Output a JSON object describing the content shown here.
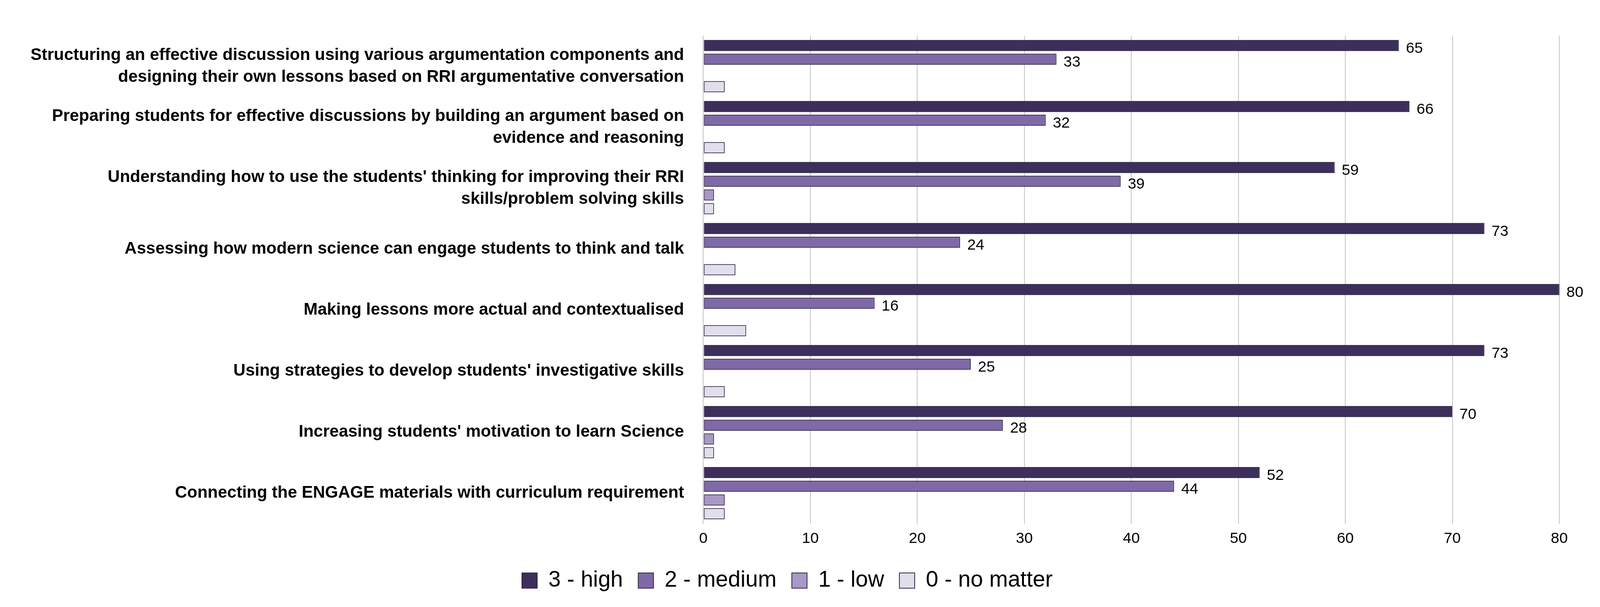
{
  "chart_data": {
    "type": "bar",
    "orientation": "horizontal",
    "categories": [
      "Structuring an effective discussion using various argumentation components and designing their own lessons based on RRI argumentative conversation",
      "Preparing students for effective discussions by building an argument based on evidence and reasoning",
      "Understanding how to use the students' thinking for improving their RRI skills/problem solving skills",
      "Assessing how modern science can engage students to think and talk",
      "Making lessons more actual and contextualised",
      "Using strategies to develop students' investigative skills",
      "Increasing students' motivation to learn Science",
      "Connecting the ENGAGE materials with curriculum requirement"
    ],
    "series": [
      {
        "name": "3 - high",
        "color": "#3d2f5c",
        "data_labels": true,
        "values": [
          65,
          66,
          59,
          73,
          80,
          73,
          70,
          52
        ]
      },
      {
        "name": "2 - medium",
        "color": "#7f6aa8",
        "data_labels": true,
        "values": [
          33,
          32,
          39,
          24,
          16,
          25,
          28,
          44
        ]
      },
      {
        "name": "1 - low",
        "color": "#a898c6",
        "values": [
          0,
          0,
          1,
          0,
          0,
          0,
          1,
          2
        ]
      },
      {
        "name": "0 - no matter",
        "color": "#e2deec",
        "values": [
          2,
          2,
          1,
          3,
          4,
          2,
          1,
          2
        ]
      }
    ],
    "xlim": [
      0,
      80
    ],
    "xticks": [
      0,
      10,
      20,
      30,
      40,
      50,
      60,
      70,
      80
    ],
    "grid": true,
    "legend": "bottom"
  }
}
